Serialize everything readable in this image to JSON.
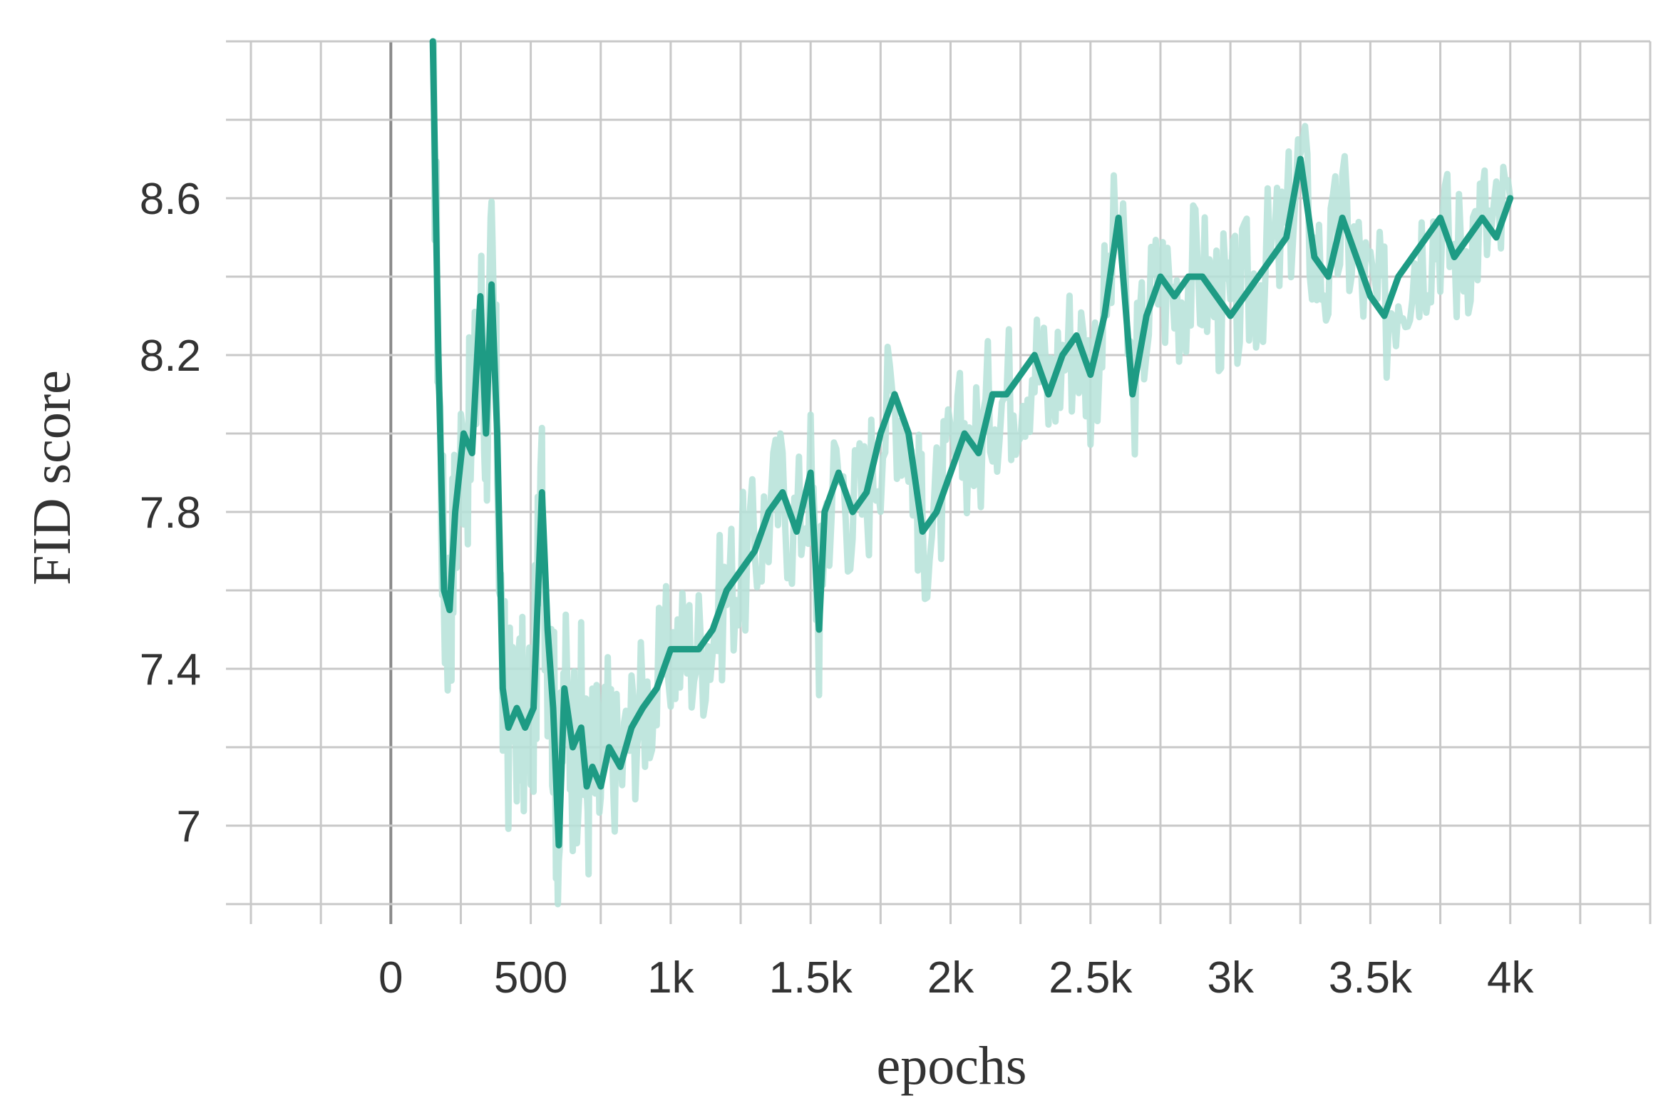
{
  "chart_data": {
    "type": "line",
    "title": "",
    "xlabel": "epochs",
    "ylabel": "FID score",
    "xlim": [
      -500,
      4500
    ],
    "ylim": [
      6.8,
      9.0
    ],
    "x_ticks": [
      0,
      500,
      1000,
      1500,
      2000,
      2500,
      3000,
      3500,
      4000
    ],
    "x_tick_labels": [
      "0",
      "500",
      "1k",
      "1.5k",
      "2k",
      "2.5k",
      "3k",
      "3.5k",
      "4k"
    ],
    "y_ticks": [
      7.0,
      7.4,
      7.8,
      8.2,
      8.6
    ],
    "y_tick_labels": [
      "7",
      "7.4",
      "7.8",
      "8.2",
      "8.6"
    ],
    "grid": true,
    "legend": "none",
    "colors": {
      "line": "#1e9b84",
      "raw": "#b5e2d8",
      "grid": "#c8c8c8",
      "zero_line": "#8a8a8a"
    },
    "series": [
      {
        "role": "smoothed",
        "x": [
          150,
          170,
          190,
          210,
          230,
          260,
          290,
          320,
          340,
          360,
          380,
          400,
          420,
          450,
          480,
          510,
          540,
          560,
          580,
          600,
          620,
          650,
          680,
          700,
          720,
          750,
          780,
          820,
          860,
          900,
          950,
          1000,
          1050,
          1100,
          1150,
          1200,
          1250,
          1300,
          1350,
          1400,
          1450,
          1500,
          1530,
          1550,
          1600,
          1650,
          1700,
          1750,
          1800,
          1850,
          1880,
          1900,
          1950,
          2000,
          2050,
          2100,
          2150,
          2200,
          2250,
          2300,
          2350,
          2400,
          2450,
          2500,
          2550,
          2600,
          2650,
          2700,
          2750,
          2800,
          2850,
          2900,
          2950,
          3000,
          3050,
          3100,
          3150,
          3200,
          3250,
          3300,
          3350,
          3400,
          3450,
          3500,
          3550,
          3600,
          3650,
          3700,
          3750,
          3800,
          3850,
          3900,
          3950,
          4000
        ],
        "y": [
          9.0,
          8.2,
          7.6,
          7.55,
          7.8,
          8.0,
          7.95,
          8.35,
          8.0,
          8.38,
          8.0,
          7.35,
          7.25,
          7.3,
          7.25,
          7.3,
          7.85,
          7.5,
          7.3,
          6.95,
          7.35,
          7.2,
          7.25,
          7.1,
          7.15,
          7.1,
          7.2,
          7.15,
          7.25,
          7.3,
          7.35,
          7.45,
          7.45,
          7.45,
          7.5,
          7.6,
          7.65,
          7.7,
          7.8,
          7.85,
          7.75,
          7.9,
          7.5,
          7.8,
          7.9,
          7.8,
          7.85,
          8.0,
          8.1,
          8.0,
          7.85,
          7.75,
          7.8,
          7.9,
          8.0,
          7.95,
          8.1,
          8.1,
          8.15,
          8.2,
          8.1,
          8.2,
          8.25,
          8.15,
          8.3,
          8.55,
          8.1,
          8.3,
          8.4,
          8.35,
          8.4,
          8.4,
          8.35,
          8.3,
          8.35,
          8.4,
          8.45,
          8.5,
          8.7,
          8.45,
          8.4,
          8.55,
          8.45,
          8.35,
          8.3,
          8.4,
          8.45,
          8.5,
          8.55,
          8.45,
          8.5,
          8.55,
          8.5,
          8.6
        ]
      }
    ]
  }
}
